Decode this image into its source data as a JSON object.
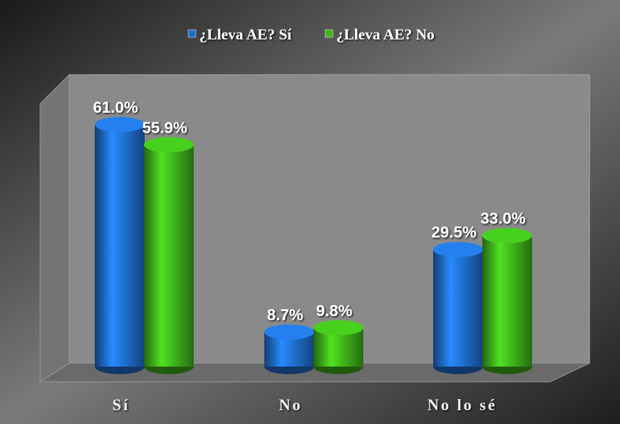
{
  "chart_data": {
    "type": "bar3d",
    "categories": [
      "Sí",
      "No",
      "No lo sé"
    ],
    "series": [
      {
        "name": "¿Lleva AE? Sí",
        "color": "#1f6fd0",
        "values": [
          61.0,
          8.7,
          29.5
        ],
        "value_labels": [
          "61.0%",
          "8.7%",
          "29.5%"
        ]
      },
      {
        "name": "¿Lleva AE? No",
        "color": "#3fb51a",
        "values": [
          55.9,
          9.8,
          33.0
        ],
        "value_labels": [
          "55.9%",
          "9.8%",
          "33.0%"
        ]
      }
    ],
    "legend": "top"
  }
}
